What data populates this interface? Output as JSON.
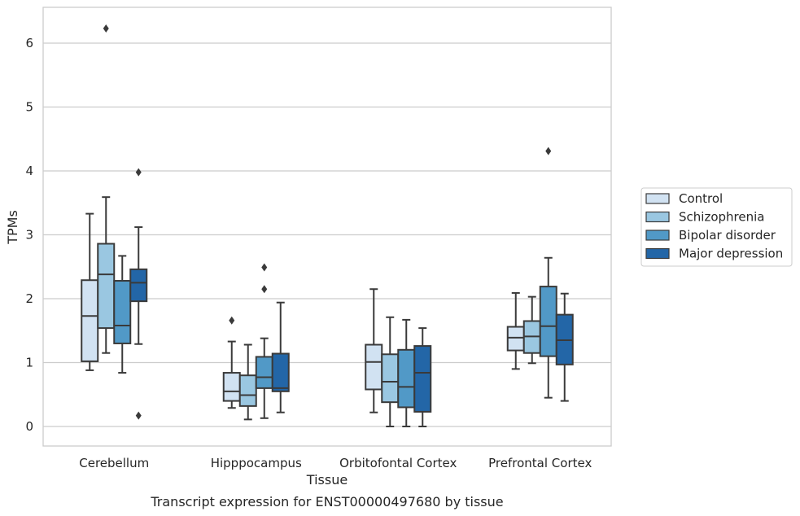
{
  "chart_data": {
    "type": "box",
    "xlabel": "Tissue",
    "ylabel": "TPMs",
    "caption": "Transcript expression for ENST00000497680 by tissue",
    "ylim": [
      -0.3,
      6.55
    ],
    "yticks": [
      0,
      1,
      2,
      3,
      4,
      5,
      6
    ],
    "grid": true,
    "legend_position": "right",
    "categories": [
      "Cerebellum",
      "Hipppocampus",
      "Orbitofontal Cortex",
      "Prefrontal Cortex"
    ],
    "series": [
      {
        "name": "Control",
        "color": "#d1e2f2",
        "boxes": [
          {
            "whislo": 0.88,
            "q1": 1.02,
            "med": 1.73,
            "q3": 2.29,
            "whishi": 3.33,
            "fliers": []
          },
          {
            "whislo": 0.29,
            "q1": 0.4,
            "med": 0.55,
            "q3": 0.84,
            "whishi": 1.33,
            "fliers": [
              1.66
            ]
          },
          {
            "whislo": 0.22,
            "q1": 0.58,
            "med": 1.01,
            "q3": 1.28,
            "whishi": 2.15,
            "fliers": []
          },
          {
            "whislo": 0.9,
            "q1": 1.19,
            "med": 1.39,
            "q3": 1.56,
            "whishi": 2.09,
            "fliers": []
          }
        ]
      },
      {
        "name": "Schizophrenia",
        "color": "#9ac7e1",
        "boxes": [
          {
            "whislo": 1.15,
            "q1": 1.54,
            "med": 2.38,
            "q3": 2.86,
            "whishi": 3.59,
            "fliers": [
              6.23
            ]
          },
          {
            "whislo": 0.11,
            "q1": 0.32,
            "med": 0.49,
            "q3": 0.8,
            "whishi": 1.28,
            "fliers": []
          },
          {
            "whislo": 0.0,
            "q1": 0.38,
            "med": 0.7,
            "q3": 1.13,
            "whishi": 1.71,
            "fliers": []
          },
          {
            "whislo": 0.99,
            "q1": 1.15,
            "med": 1.41,
            "q3": 1.65,
            "whishi": 2.03,
            "fliers": []
          }
        ]
      },
      {
        "name": "Bipolar disorder",
        "color": "#5199c7",
        "boxes": [
          {
            "whislo": 0.84,
            "q1": 1.3,
            "med": 1.58,
            "q3": 2.28,
            "whishi": 2.67,
            "fliers": []
          },
          {
            "whislo": 0.13,
            "q1": 0.6,
            "med": 0.77,
            "q3": 1.09,
            "whishi": 1.38,
            "fliers": [
              2.15,
              2.49
            ]
          },
          {
            "whislo": 0.0,
            "q1": 0.3,
            "med": 0.62,
            "q3": 1.2,
            "whishi": 1.67,
            "fliers": []
          },
          {
            "whislo": 0.45,
            "q1": 1.1,
            "med": 1.57,
            "q3": 2.19,
            "whishi": 2.64,
            "fliers": [
              4.31
            ]
          }
        ]
      },
      {
        "name": "Major depression",
        "color": "#2366a7",
        "boxes": [
          {
            "whislo": 1.29,
            "q1": 1.96,
            "med": 2.25,
            "q3": 2.46,
            "whishi": 3.12,
            "fliers": [
              3.98,
              0.17
            ]
          },
          {
            "whislo": 0.22,
            "q1": 0.55,
            "med": 0.6,
            "q3": 1.14,
            "whishi": 1.94,
            "fliers": []
          },
          {
            "whislo": 0.0,
            "q1": 0.23,
            "med": 0.84,
            "q3": 1.26,
            "whishi": 1.54,
            "fliers": []
          },
          {
            "whislo": 0.4,
            "q1": 0.97,
            "med": 1.35,
            "q3": 1.75,
            "whishi": 2.08,
            "fliers": []
          }
        ]
      }
    ]
  }
}
